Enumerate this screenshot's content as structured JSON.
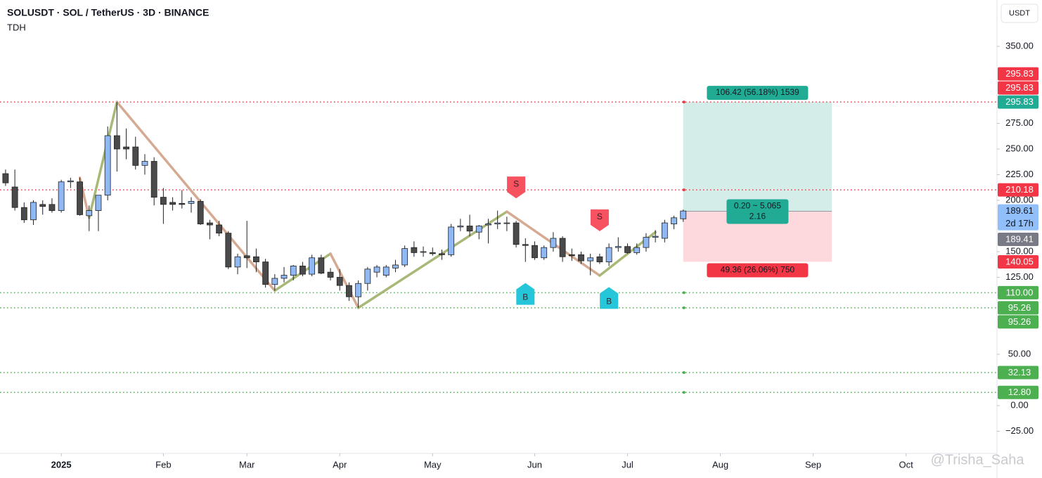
{
  "chart_data": {
    "type": "candlestick",
    "title": "SOLUSDT · SOL / TetherUS · 3D · BINANCE",
    "subtitle": "TDH",
    "currency": "USDT",
    "watermark": "@Trisha_Saha",
    "x": [
      0,
      1,
      2,
      3,
      4,
      5,
      6,
      7,
      8,
      9,
      10,
      11,
      12,
      13,
      14,
      15,
      16,
      17,
      18,
      19,
      20,
      21,
      22,
      23,
      24,
      25,
      26,
      27,
      28,
      29,
      30,
      31,
      32,
      33,
      34,
      35,
      36,
      37,
      38,
      39,
      40,
      41,
      42,
      43,
      44,
      45,
      46,
      47,
      48,
      49,
      50,
      51,
      52,
      53,
      54,
      55,
      56,
      57,
      58,
      59,
      60,
      61,
      62,
      63,
      64,
      65,
      66,
      67,
      68,
      69,
      70,
      71,
      72,
      73
    ],
    "open": [
      226,
      213,
      193,
      181,
      196,
      196,
      190,
      218,
      218,
      185,
      190,
      205,
      263,
      252,
      252,
      234,
      238,
      203,
      198,
      197,
      197,
      199,
      178,
      176,
      168,
      135,
      146,
      145,
      140,
      118,
      124,
      127,
      136,
      128,
      144,
      130,
      125,
      117,
      106,
      119,
      130,
      127,
      134,
      137,
      154,
      150,
      149,
      148,
      147,
      174,
      175,
      169,
      176,
      177,
      178,
      178,
      157,
      156,
      144,
      154,
      163,
      147,
      147,
      141,
      145,
      140,
      154,
      155,
      149,
      154,
      164,
      163,
      177,
      182
    ],
    "high": [
      230,
      230,
      198,
      200,
      200,
      202,
      220,
      222,
      222,
      195,
      205,
      272,
      295.83,
      270,
      262,
      245,
      242,
      212,
      203,
      210,
      203,
      201,
      181,
      180,
      170,
      148,
      180,
      153,
      143,
      128,
      135,
      137,
      140,
      147,
      147,
      134,
      133,
      120,
      122,
      135,
      137,
      137,
      142,
      156,
      160,
      155,
      154,
      152,
      177,
      182,
      186,
      176,
      182,
      190,
      184,
      180,
      163,
      160,
      156,
      169,
      165,
      153,
      150,
      148,
      148,
      158,
      164,
      158,
      158,
      168,
      171,
      181,
      185,
      191
    ],
    "low": [
      214,
      190,
      178,
      176,
      186,
      188,
      188,
      212,
      185,
      170,
      170,
      200,
      228,
      240,
      230,
      225,
      195,
      177,
      190,
      192,
      188,
      176,
      162,
      165,
      133,
      128,
      134,
      130,
      115,
      112,
      120,
      122,
      126,
      126,
      128,
      122,
      112,
      102,
      95.26,
      112,
      125,
      125,
      130,
      135,
      145,
      145,
      146,
      142,
      145,
      170,
      165,
      162,
      158,
      172,
      170,
      154,
      140,
      142,
      142,
      150,
      140,
      141,
      138,
      127,
      138,
      136,
      150,
      148,
      147,
      150,
      159,
      159,
      172,
      179
    ],
    "close": [
      217,
      193,
      181,
      198,
      194,
      190,
      218,
      219,
      186,
      190,
      205,
      263,
      250,
      250,
      234,
      238,
      203,
      196,
      196,
      196,
      199,
      177,
      176,
      168,
      135,
      145,
      144,
      140,
      118,
      124,
      127,
      136,
      128,
      144,
      129,
      125,
      117,
      106,
      119,
      133,
      135,
      135,
      137,
      153,
      149,
      150,
      148,
      147,
      174,
      175,
      170,
      175,
      177,
      178,
      178,
      157,
      156,
      144,
      154,
      163,
      145,
      146,
      141,
      144,
      140,
      154,
      155,
      149,
      154,
      164,
      165,
      178,
      183,
      189.61
    ],
    "up_color": "#90b8f3",
    "down_color": "#4a4a4a",
    "xlim": [
      -0.6,
      106.8
    ],
    "ylim": [
      -46.6,
      395.2
    ],
    "yticks": [
      {
        "value": 350,
        "label": "350.00"
      },
      {
        "value": 275,
        "label": "275.00"
      },
      {
        "value": 250,
        "label": "250.00"
      },
      {
        "value": 225,
        "label": "225.00"
      },
      {
        "value": 200,
        "label": "200.00"
      },
      {
        "value": 150,
        "label": "150.00"
      },
      {
        "value": 125,
        "label": "125.00"
      },
      {
        "value": 50,
        "label": "50.00"
      },
      {
        "value": 0,
        "label": "0.00"
      },
      {
        "value": -25,
        "label": "−25.00"
      }
    ],
    "xticks": [
      {
        "value": 6,
        "label": "2025"
      },
      {
        "value": 17,
        "label": "Feb"
      },
      {
        "value": 26,
        "label": "Mar"
      },
      {
        "value": 36,
        "label": "Apr"
      },
      {
        "value": 46,
        "label": "May"
      },
      {
        "value": 57,
        "label": "Jun"
      },
      {
        "value": 67,
        "label": "Jul"
      },
      {
        "value": 77,
        "label": "Aug"
      },
      {
        "value": 87,
        "label": "Sep"
      },
      {
        "value": 97,
        "label": "Oct"
      }
    ],
    "zigzag": {
      "x": [
        8,
        9,
        12,
        29,
        35,
        38,
        54,
        64,
        70
      ],
      "values": [
        222,
        183,
        295.83,
        112,
        148,
        95.26,
        189,
        126.7,
        169
      ],
      "up_color": "#a7b877",
      "down_color": "#d6aa92"
    },
    "levels": [
      {
        "value": 295.83,
        "color": "#f23645"
      },
      {
        "value": 210.18,
        "color": "#f23645"
      },
      {
        "value": 110,
        "color": "#4caf50"
      },
      {
        "value": 95.26,
        "color": "#4caf50"
      },
      {
        "value": 32.13,
        "color": "#4caf50"
      },
      {
        "value": 12.8,
        "color": "#4caf50"
      }
    ],
    "position": {
      "x": [
        73,
        89
      ],
      "entry": 189.41,
      "target": 295.83,
      "stop": 140.05,
      "target_label": "106.42 (56.18%) 1539",
      "entry_label": [
        "0.20 ~ 5.065",
        "2.16"
      ],
      "stop_label": "49.36 (26.06%) 750"
    },
    "signals": [
      {
        "text": "S",
        "x": 55,
        "side": "above",
        "color": "#f7525f"
      },
      {
        "text": "S",
        "x": 64,
        "side": "above",
        "color": "#f7525f"
      },
      {
        "text": "B",
        "x": 56,
        "side": "below",
        "color": "#26c6da"
      },
      {
        "text": "B",
        "x": 65,
        "side": "below",
        "color": "#26c6da"
      }
    ],
    "axis_labels": [
      {
        "text": "295.83",
        "value": 295.83,
        "color": "#22ab94"
      },
      {
        "text": "295.83",
        "value": 295.83,
        "color": "#f23645"
      },
      {
        "text": "295.83",
        "value": 295.83,
        "color": "#f23645"
      },
      {
        "text": "210.18",
        "value": 210.18,
        "color": "#f23645"
      },
      {
        "text": "189.61",
        "value": 189.61,
        "sub": "2d 17h",
        "color": "#90bff9",
        "text_color": "#131722"
      },
      {
        "text": "189.41",
        "value": 189.41,
        "color": "#787b86"
      },
      {
        "text": "140.05",
        "value": 140.05,
        "color": "#f23645"
      },
      {
        "text": "110.00",
        "value": 110,
        "color": "#4caf50"
      },
      {
        "text": "95.26",
        "value": 95.26,
        "color": "#4caf50"
      },
      {
        "text": "95.26",
        "value": 95.26,
        "color": "#4caf50"
      },
      {
        "text": "32.13",
        "value": 32.13,
        "color": "#4caf50"
      },
      {
        "text": "12.80",
        "value": 12.8,
        "color": "#4caf50"
      }
    ]
  }
}
